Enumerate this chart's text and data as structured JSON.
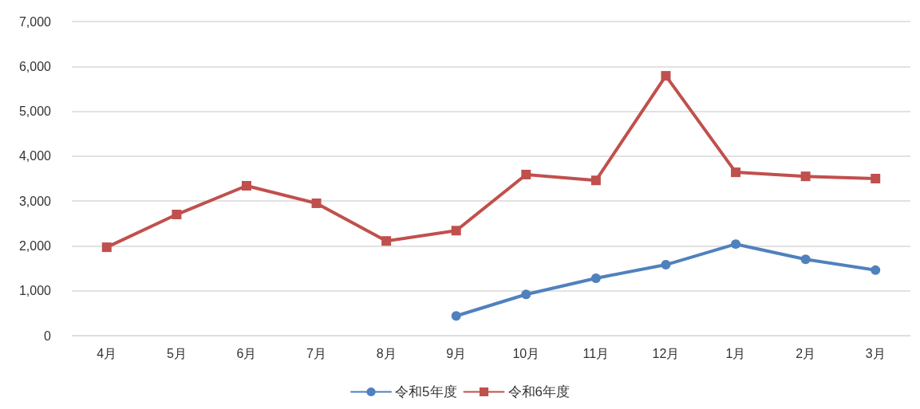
{
  "chart_data": {
    "type": "line",
    "categories": [
      "4月",
      "5月",
      "6月",
      "7月",
      "8月",
      "9月",
      "10月",
      "11月",
      "12月",
      "1月",
      "2月",
      "3月"
    ],
    "series": [
      {
        "name": "令和5年度",
        "color": "#4f81bd",
        "marker": "circle",
        "values": [
          null,
          null,
          null,
          null,
          null,
          440,
          920,
          1280,
          1580,
          2040,
          1700,
          1460
        ]
      },
      {
        "name": "令和6年度",
        "color": "#c0504d",
        "marker": "square",
        "values": [
          1970,
          2700,
          3340,
          2950,
          2110,
          2340,
          3590,
          3460,
          5790,
          3640,
          3550,
          3500
        ]
      }
    ],
    "ylim": [
      0,
      7000
    ],
    "yticks": [
      {
        "value": 0,
        "label": "0"
      },
      {
        "value": 1000,
        "label": "1,000"
      },
      {
        "value": 2000,
        "label": "2,000"
      },
      {
        "value": 3000,
        "label": "3,000"
      },
      {
        "value": 4000,
        "label": "4,000"
      },
      {
        "value": 5000,
        "label": "5,000"
      },
      {
        "value": 6000,
        "label": "6,000"
      },
      {
        "value": 7000,
        "label": "7,000"
      }
    ],
    "grid": "y",
    "legend": "bottom",
    "line_style": "solid"
  }
}
